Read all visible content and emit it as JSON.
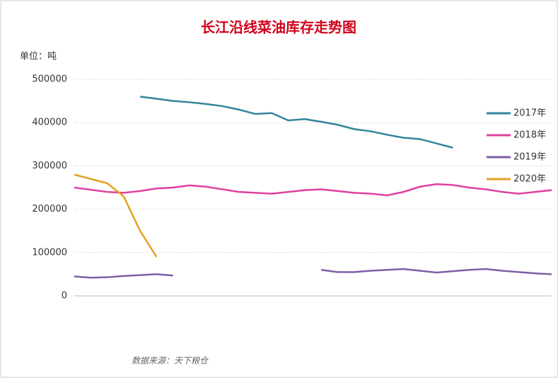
{
  "chart_data": {
    "type": "line",
    "title": "长江沿线菜油库存走势图",
    "y_label": "单位：吨",
    "source": "数据来源：天下粮仓",
    "categories": [
      null,
      null,
      null,
      null,
      null,
      null,
      null,
      null,
      null,
      null,
      null,
      null,
      null,
      null,
      null,
      null,
      null,
      null,
      null,
      null,
      null,
      null,
      null,
      null,
      null,
      null,
      null,
      null,
      null,
      null
    ],
    "series": [
      {
        "name": "2017年",
        "color": "#31849b",
        "values": [
          null,
          null,
          null,
          null,
          460000,
          455000,
          450000,
          447000,
          443000,
          438000,
          430000,
          420000,
          422000,
          405000,
          408000,
          402000,
          395000,
          385000,
          380000,
          372000,
          365000,
          362000,
          352000,
          342000,
          null,
          null,
          null,
          null,
          null,
          null
        ]
      },
      {
        "name": "2018年",
        "color": "#e040a0",
        "values": [
          250000,
          245000,
          240000,
          238000,
          242000,
          248000,
          250000,
          255000,
          252000,
          246000,
          240000,
          238000,
          236000,
          240000,
          244000,
          246000,
          242000,
          238000,
          236000,
          232000,
          240000,
          252000,
          258000,
          256000,
          250000,
          246000,
          240000,
          236000,
          240000,
          244000
        ]
      },
      {
        "name": "2019年",
        "color": "#7f5fa8",
        "values": [
          45000,
          42000,
          43000,
          46000,
          48000,
          50000,
          47000,
          null,
          null,
          null,
          null,
          null,
          null,
          null,
          null,
          60000,
          55000,
          55000,
          58000,
          60000,
          62000,
          58000,
          54000,
          57000,
          60000,
          62000,
          58000,
          55000,
          52000,
          50000
        ]
      },
      {
        "name": "2020年",
        "color": "#e6a020",
        "values": [
          280000,
          270000,
          260000,
          230000,
          150000,
          90000,
          null,
          null,
          null,
          null,
          null,
          null,
          null,
          null,
          null,
          null,
          null,
          null,
          null,
          null,
          null,
          null,
          null,
          null,
          null,
          null,
          null,
          null,
          null,
          null
        ]
      }
    ],
    "ylim": [
      0,
      500000
    ],
    "yticks": [
      0,
      100000,
      200000,
      300000,
      400000,
      500000
    ],
    "grid": true,
    "legend": "right"
  }
}
